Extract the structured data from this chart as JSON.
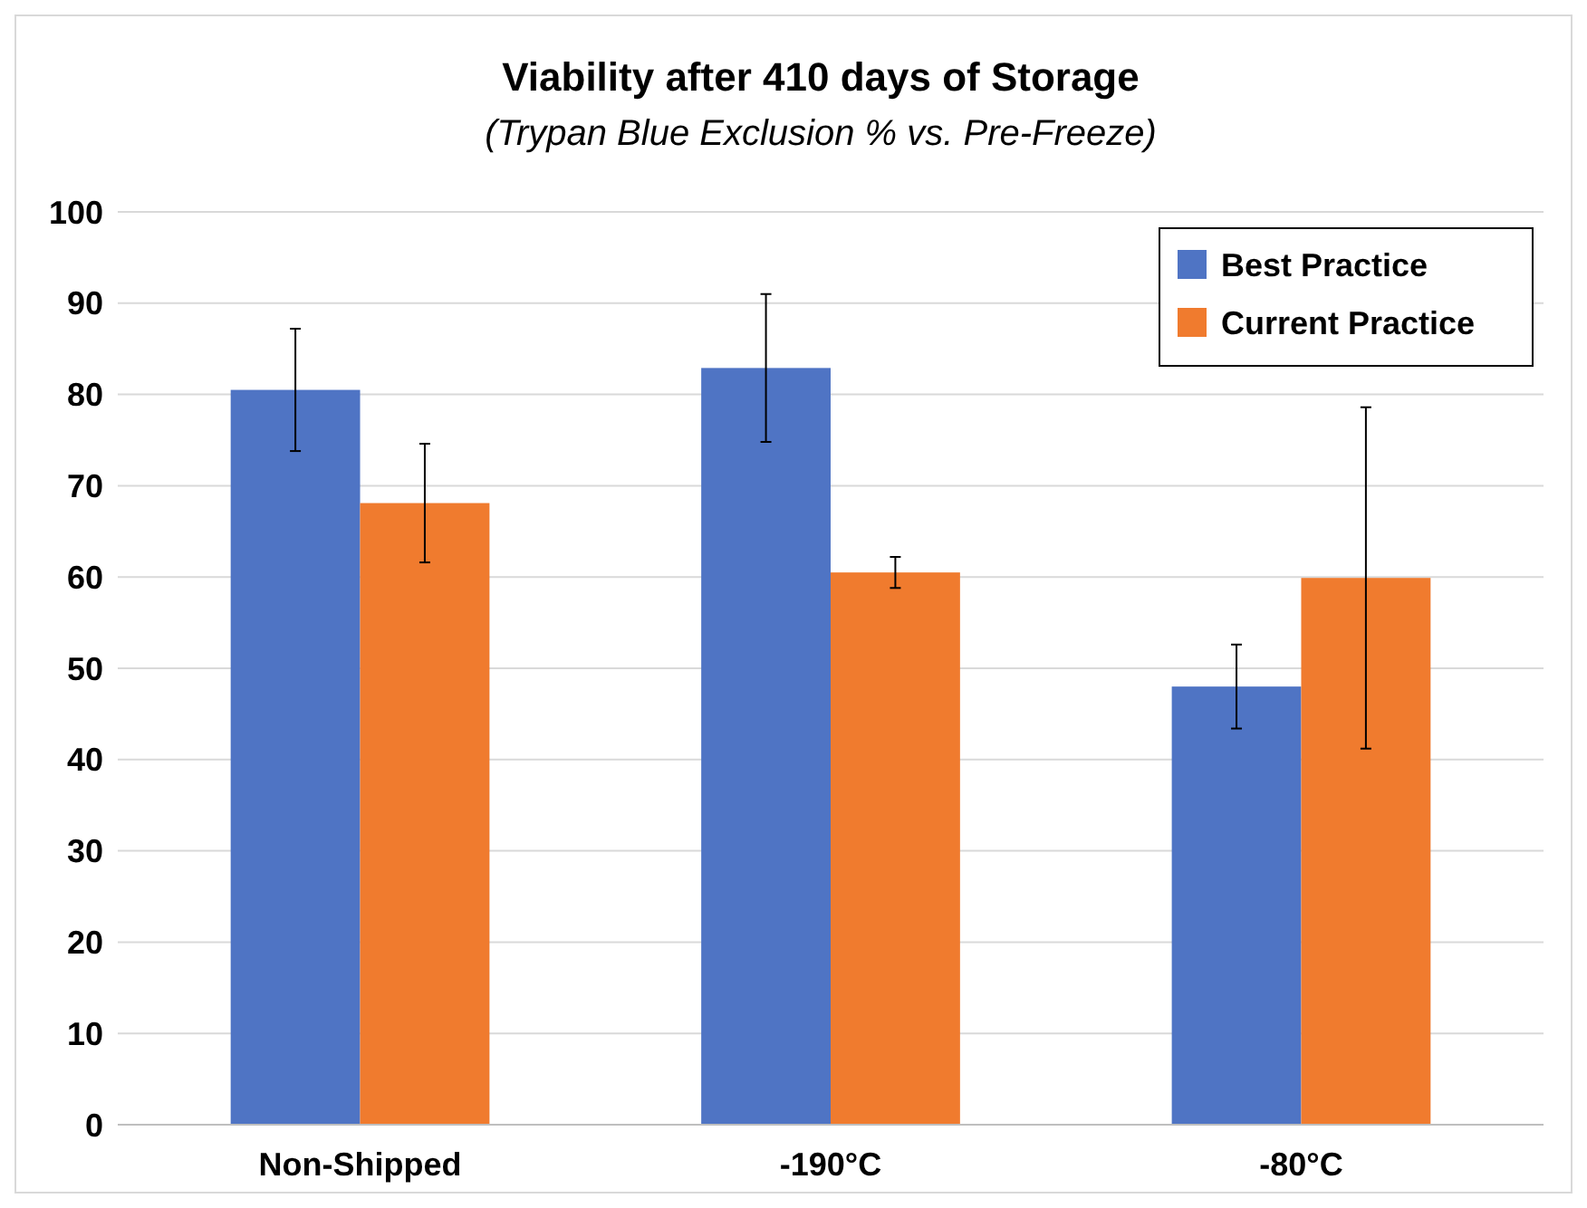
{
  "chart_data": {
    "type": "bar",
    "title": "Viability after 410 days of Storage",
    "subtitle": "(Trypan Blue Exclusion % vs. Pre-Freeze)",
    "categories": [
      "Non-Shipped",
      "-190°C",
      "-80°C"
    ],
    "series": [
      {
        "name": "Best Practice",
        "color": "#4f74c4",
        "values": [
          80.5,
          82.9,
          48
        ],
        "errors": [
          6.7,
          8.1,
          4.6
        ]
      },
      {
        "name": "Current Practice",
        "color": "#f07b2e",
        "values": [
          68.1,
          60.5,
          59.9
        ],
        "errors": [
          6.5,
          1.7,
          18.7
        ]
      }
    ],
    "ylim": [
      0,
      100
    ],
    "yticks": [
      0,
      10,
      20,
      30,
      40,
      50,
      60,
      70,
      80,
      90,
      100
    ],
    "grid": "y",
    "legend": "top right"
  }
}
